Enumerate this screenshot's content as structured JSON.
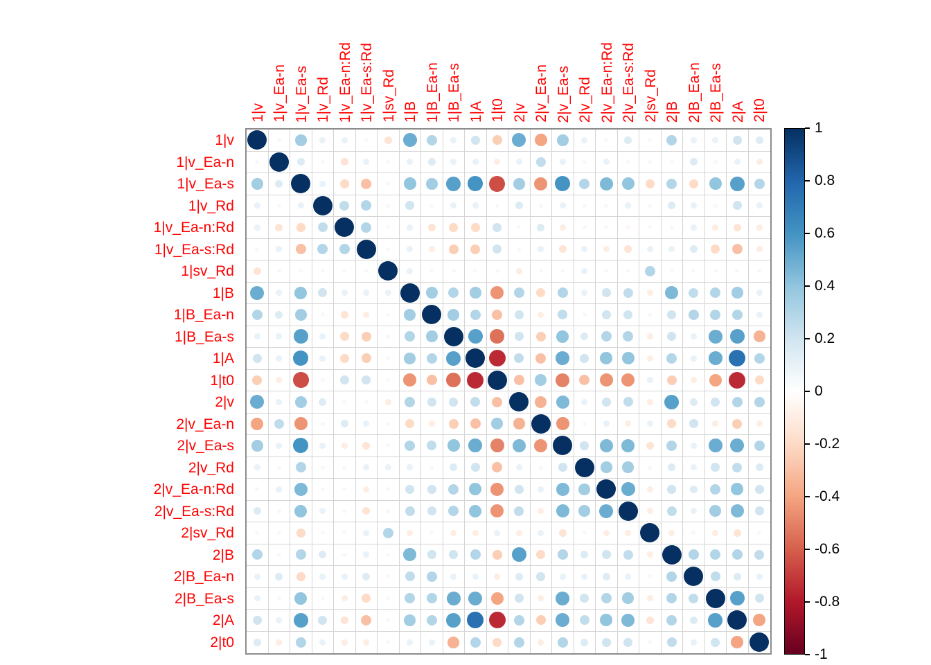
{
  "page": {
    "background": "#ffffff"
  },
  "chart_data": {
    "type": "heatmap",
    "subtype": "correlogram-circles",
    "title": "",
    "xlabel": "",
    "ylabel": "",
    "grid": true,
    "label_color": "#ff0000",
    "tick_label_color": "#000000",
    "grid_line_color": "#d4d4d4",
    "frame_color": "#8c8c8c",
    "labels": [
      "1|v",
      "1|v_Ea-n",
      "1|v_Ea-s",
      "1|v_Rd",
      "1|v_Ea-n:Rd",
      "1|v_Ea-s:Rd",
      "1|sv_Rd",
      "1|B",
      "1|B_Ea-n",
      "1|B_Ea-s",
      "1|A",
      "1|t0",
      "2|v",
      "2|v_Ea-n",
      "2|v_Ea-s",
      "2|v_Rd",
      "2|v_Ea-n:Rd",
      "2|v_Ea-s:Rd",
      "2|sv_Rd",
      "2|B",
      "2|B_Ea-n",
      "2|B_Ea-s",
      "2|A",
      "2|t0"
    ],
    "matrix": [
      [
        1,
        0.05,
        0.35,
        0.1,
        0.1,
        0.05,
        -0.15,
        0.5,
        0.3,
        0.1,
        0.2,
        -0.25,
        0.5,
        -0.4,
        0.35,
        0.1,
        0.05,
        0.15,
        0.05,
        0.3,
        0.1,
        0.1,
        0.2,
        0.15
      ],
      [
        0.05,
        1,
        0.15,
        0.05,
        -0.15,
        0.1,
        0.05,
        0.1,
        0.15,
        0.1,
        0.1,
        -0.1,
        0.1,
        0.25,
        0.1,
        0.05,
        0.1,
        0.05,
        0.05,
        0.05,
        0.15,
        0.05,
        0.1,
        -0.1
      ],
      [
        0.35,
        0.15,
        1,
        0.1,
        -0.2,
        -0.3,
        0.05,
        0.4,
        0.35,
        0.55,
        0.6,
        -0.65,
        0.35,
        -0.45,
        0.6,
        0.3,
        0.45,
        0.4,
        -0.2,
        0.3,
        -0.2,
        0.4,
        0.55,
        0.3
      ],
      [
        0.1,
        0.05,
        0.1,
        1,
        0.25,
        0.3,
        0.05,
        0.2,
        0.05,
        0.1,
        0.1,
        0.05,
        0.15,
        0.05,
        0.1,
        0.05,
        0.05,
        0.1,
        0.05,
        0.15,
        0.1,
        0.05,
        0.2,
        0.1
      ],
      [
        0.1,
        -0.15,
        -0.2,
        0.25,
        1,
        0.3,
        0.05,
        0.1,
        -0.15,
        -0.2,
        -0.2,
        0.2,
        0.05,
        0.15,
        -0.1,
        0.05,
        0.05,
        -0.05,
        0.05,
        0.05,
        0.1,
        -0.1,
        -0.15,
        -0.1
      ],
      [
        0.05,
        0.1,
        -0.3,
        0.3,
        0.3,
        1,
        0.05,
        0.1,
        -0.1,
        -0.25,
        -0.25,
        0.2,
        0.05,
        0.1,
        -0.15,
        0.1,
        -0.1,
        -0.15,
        0.1,
        0.1,
        0.15,
        -0.2,
        -0.3,
        -0.1
      ],
      [
        -0.15,
        0.05,
        0.05,
        0.05,
        0.05,
        0.05,
        1,
        0.1,
        0.05,
        0.05,
        0.05,
        0.05,
        -0.1,
        0.05,
        0.05,
        0.1,
        0.05,
        0.05,
        0.3,
        -0.05,
        0.05,
        0.05,
        0.05,
        0.05
      ],
      [
        0.5,
        0.1,
        0.4,
        0.2,
        0.1,
        0.1,
        0.1,
        1,
        0.35,
        0.3,
        0.35,
        -0.45,
        0.3,
        -0.2,
        0.3,
        0.1,
        0.2,
        0.25,
        -0.1,
        0.45,
        0.25,
        0.3,
        0.35,
        0.1
      ],
      [
        0.3,
        0.15,
        0.35,
        0.05,
        -0.15,
        -0.1,
        0.05,
        0.35,
        1,
        0.35,
        0.3,
        -0.3,
        0.2,
        -0.1,
        0.25,
        0.05,
        0.2,
        0.2,
        0.05,
        0.2,
        0.3,
        0.3,
        0.3,
        0.1
      ],
      [
        0.1,
        0.1,
        0.55,
        0.1,
        -0.2,
        -0.25,
        0.05,
        0.3,
        0.35,
        1,
        0.55,
        -0.55,
        0.2,
        -0.25,
        0.4,
        0.15,
        0.3,
        0.3,
        -0.1,
        0.2,
        0.1,
        0.5,
        0.55,
        -0.35
      ],
      [
        0.2,
        0.1,
        0.6,
        0.1,
        -0.2,
        -0.25,
        0.05,
        0.35,
        0.3,
        0.55,
        1,
        -0.75,
        0.25,
        -0.3,
        0.5,
        0.2,
        0.4,
        0.4,
        -0.1,
        0.3,
        0.1,
        0.5,
        0.75,
        0.3
      ],
      [
        -0.25,
        -0.1,
        -0.65,
        0.05,
        0.2,
        0.2,
        0.05,
        -0.45,
        -0.3,
        -0.55,
        -0.75,
        1,
        -0.3,
        0.35,
        -0.5,
        -0.3,
        -0.45,
        -0.45,
        0.1,
        -0.25,
        -0.1,
        -0.4,
        -0.75,
        -0.2
      ],
      [
        0.5,
        0.1,
        0.35,
        0.15,
        0.05,
        0.05,
        -0.1,
        0.3,
        0.2,
        0.2,
        0.25,
        -0.3,
        1,
        -0.35,
        0.45,
        0.1,
        0.2,
        0.25,
        -0.1,
        0.55,
        0.15,
        0.2,
        0.3,
        0.3
      ],
      [
        -0.4,
        0.25,
        -0.45,
        0.05,
        0.15,
        0.1,
        0.05,
        -0.2,
        -0.1,
        -0.25,
        -0.3,
        0.35,
        -0.35,
        1,
        -0.45,
        0.05,
        0.1,
        -0.1,
        0.1,
        -0.2,
        0.2,
        -0.1,
        -0.25,
        -0.1
      ],
      [
        0.35,
        0.1,
        0.6,
        0.1,
        -0.1,
        -0.15,
        0.05,
        0.3,
        0.25,
        0.4,
        0.5,
        -0.5,
        0.45,
        -0.45,
        1,
        0.2,
        0.45,
        0.45,
        -0.15,
        0.3,
        0.1,
        0.5,
        0.5,
        0.3
      ],
      [
        0.1,
        0.05,
        0.3,
        0.05,
        0.05,
        0.1,
        0.1,
        0.1,
        0.05,
        0.15,
        0.2,
        -0.3,
        0.1,
        0.05,
        0.2,
        1,
        0.35,
        0.35,
        0.05,
        0.15,
        0.1,
        0.2,
        0.25,
        0.15
      ],
      [
        0.05,
        0.1,
        0.45,
        0.05,
        0.05,
        -0.1,
        0.05,
        0.2,
        0.2,
        0.3,
        0.4,
        -0.45,
        0.2,
        0.1,
        0.45,
        0.35,
        1,
        0.5,
        -0.1,
        0.2,
        0.15,
        0.3,
        0.4,
        0.2
      ],
      [
        0.15,
        0.05,
        0.4,
        0.1,
        -0.05,
        -0.15,
        0.05,
        0.25,
        0.2,
        0.3,
        0.4,
        -0.45,
        0.25,
        -0.1,
        0.45,
        0.35,
        0.5,
        1,
        -0.1,
        0.25,
        0.1,
        0.35,
        0.45,
        0.2
      ],
      [
        0.05,
        0.05,
        -0.2,
        0.05,
        0.05,
        0.1,
        0.3,
        -0.1,
        0.05,
        -0.1,
        -0.1,
        0.1,
        -0.1,
        0.1,
        -0.15,
        0.05,
        -0.1,
        -0.1,
        1,
        -0.1,
        0.05,
        -0.1,
        -0.15,
        0.05
      ],
      [
        0.3,
        0.05,
        0.3,
        0.15,
        0.05,
        0.1,
        -0.05,
        0.45,
        0.2,
        0.2,
        0.3,
        -0.25,
        0.55,
        -0.2,
        0.3,
        0.15,
        0.2,
        0.25,
        -0.1,
        1,
        0.3,
        0.3,
        0.3,
        0.25
      ],
      [
        0.1,
        0.15,
        -0.2,
        0.1,
        0.1,
        0.15,
        0.05,
        0.25,
        0.3,
        0.1,
        0.1,
        -0.1,
        0.15,
        0.2,
        0.1,
        0.1,
        0.15,
        0.1,
        0.05,
        0.3,
        1,
        0.25,
        0.15,
        0.1
      ],
      [
        0.1,
        0.05,
        0.4,
        0.05,
        -0.1,
        -0.2,
        0.05,
        0.3,
        0.3,
        0.5,
        0.5,
        -0.4,
        0.2,
        -0.1,
        0.5,
        0.2,
        0.3,
        0.35,
        -0.1,
        0.3,
        0.25,
        1,
        0.55,
        0.2
      ],
      [
        0.2,
        0.1,
        0.55,
        0.2,
        -0.15,
        -0.3,
        0.05,
        0.35,
        0.3,
        0.55,
        0.75,
        -0.75,
        0.3,
        -0.25,
        0.5,
        0.25,
        0.4,
        0.45,
        -0.15,
        0.3,
        0.15,
        0.55,
        1,
        -0.4
      ],
      [
        0.15,
        -0.1,
        0.3,
        0.1,
        -0.1,
        -0.1,
        0.05,
        0.1,
        0.1,
        -0.35,
        0.3,
        -0.2,
        0.3,
        -0.1,
        0.3,
        0.15,
        0.2,
        0.2,
        0.05,
        0.25,
        0.1,
        0.2,
        -0.4,
        1
      ]
    ],
    "colorbar": {
      "min": -1,
      "max": 1,
      "position": "right",
      "tick_values": [
        1,
        0.8,
        0.6,
        0.4,
        0.2,
        0,
        -0.2,
        -0.4,
        -0.6,
        -0.8,
        -1
      ],
      "tick_labels": [
        "1",
        "0.8",
        "0.6",
        "0.4",
        "0.2",
        "0",
        "-0.2",
        "-0.4",
        "-0.6",
        "-0.8",
        "-1"
      ]
    },
    "colormap": {
      "name": "RdBu",
      "anchors": [
        "#67001F",
        "#B2182B",
        "#D6604D",
        "#F4A582",
        "#FDDBC7",
        "#FFFFFF",
        "#D1E5F0",
        "#92C5DE",
        "#4393C3",
        "#2166AC",
        "#053061"
      ]
    }
  }
}
